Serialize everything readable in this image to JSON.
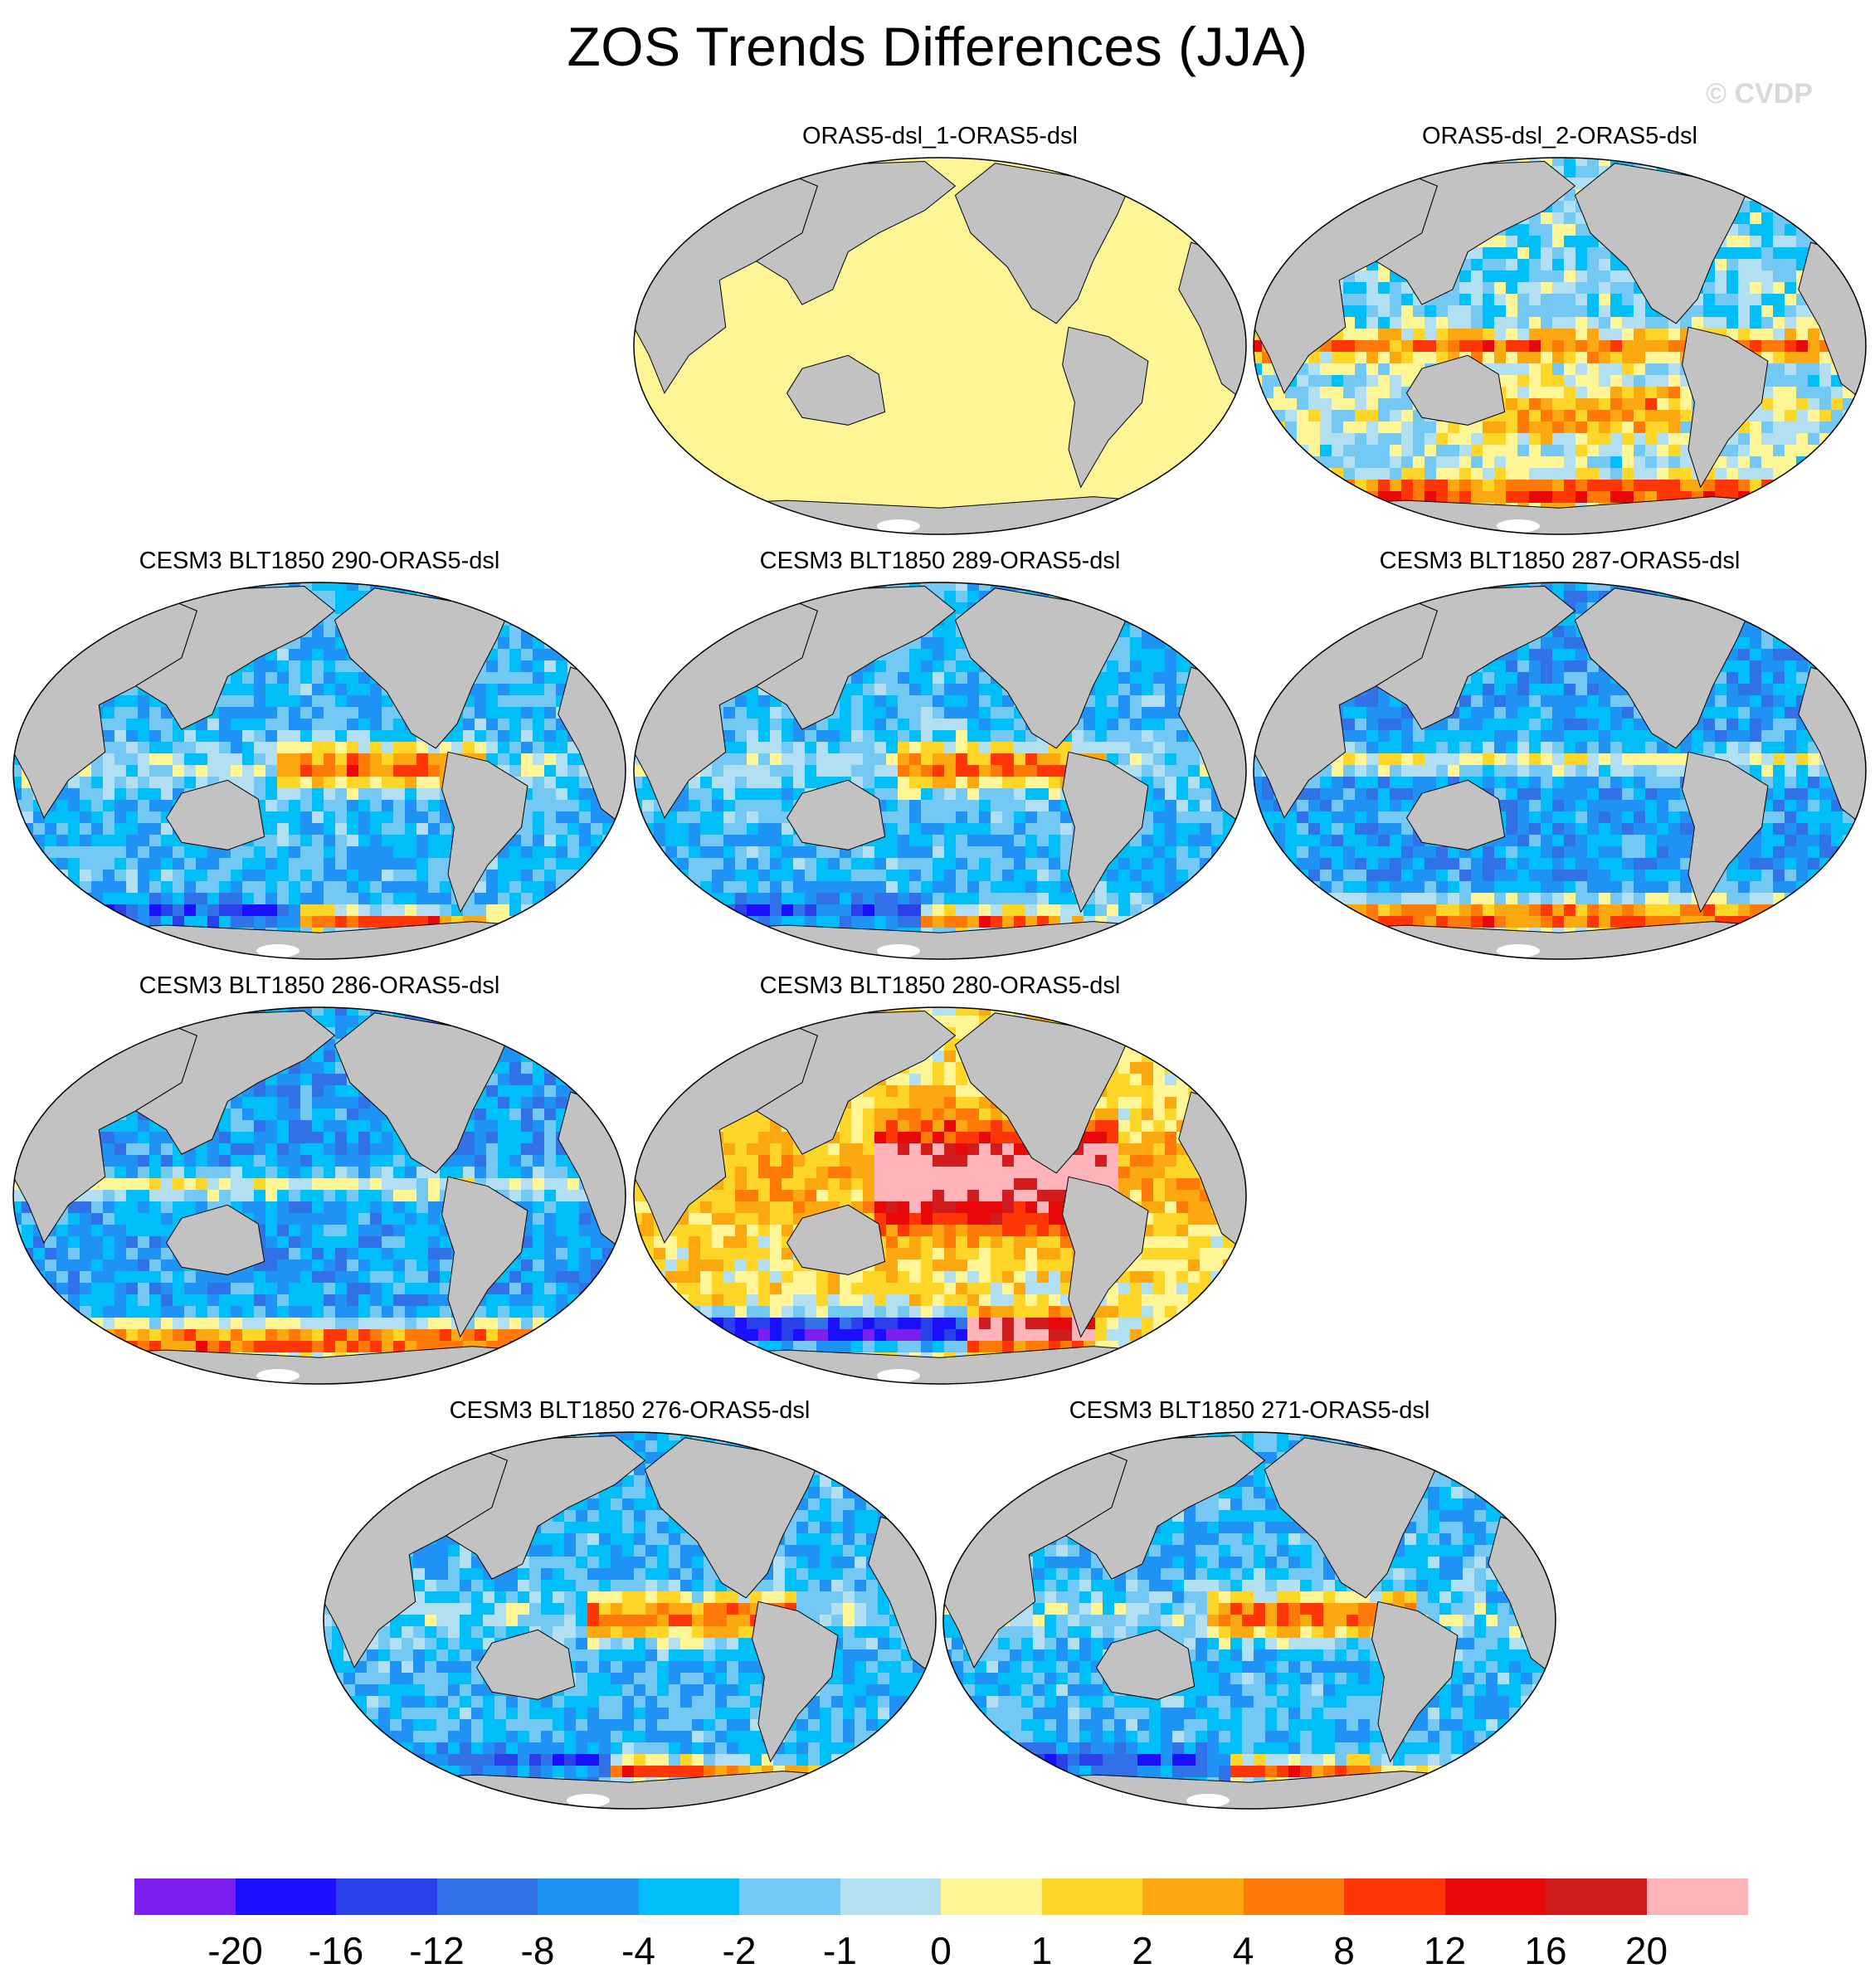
{
  "title": "ZOS Trends Differences (JJA)",
  "watermark": "© CVDP",
  "colors": {
    "land": "#c2c2c2",
    "outline": "#000000",
    "ice": "#ffffff"
  },
  "colorbar": {
    "colors": [
      "#7a1ff0",
      "#1a10ff",
      "#2a40e8",
      "#3272e8",
      "#1e93f5",
      "#00bff8",
      "#74c8f4",
      "#b3dff2",
      "#fdf596",
      "#fdd628",
      "#fca810",
      "#ff7a08",
      "#ff3606",
      "#e80808",
      "#d01c1c",
      "#feb3b8"
    ],
    "labels": [
      "-20",
      "-16",
      "-12",
      "-8",
      "-4",
      "-2",
      "-1",
      "0",
      "1",
      "2",
      "4",
      "8",
      "12",
      "16",
      "20"
    ]
  },
  "panels": [
    {
      "title": "ORAS5-dsl_1-ORAS5-dsl",
      "pattern": "uniform"
    },
    {
      "title": "ORAS5-dsl_2-ORAS5-dsl",
      "pattern": "reanalysis"
    },
    {
      "title": "CESM3 BLT1850 290-ORAS5-dsl",
      "pattern": "model-warm-pacific"
    },
    {
      "title": "CESM3 BLT1850 289-ORAS5-dsl",
      "pattern": "model-warm-pacific"
    },
    {
      "title": "CESM3 BLT1850 287-ORAS5-dsl",
      "pattern": "model-cool"
    },
    {
      "title": "CESM3 BLT1850 286-ORAS5-dsl",
      "pattern": "model-cool"
    },
    {
      "title": "CESM3 BLT1850 280-ORAS5-dsl",
      "pattern": "model-strong-warm"
    },
    {
      "title": "CESM3 BLT1850 276-ORAS5-dsl",
      "pattern": "model-warm-pacific"
    },
    {
      "title": "CESM3 BLT1850 271-ORAS5-dsl",
      "pattern": "model-warm-pacific"
    }
  ]
}
